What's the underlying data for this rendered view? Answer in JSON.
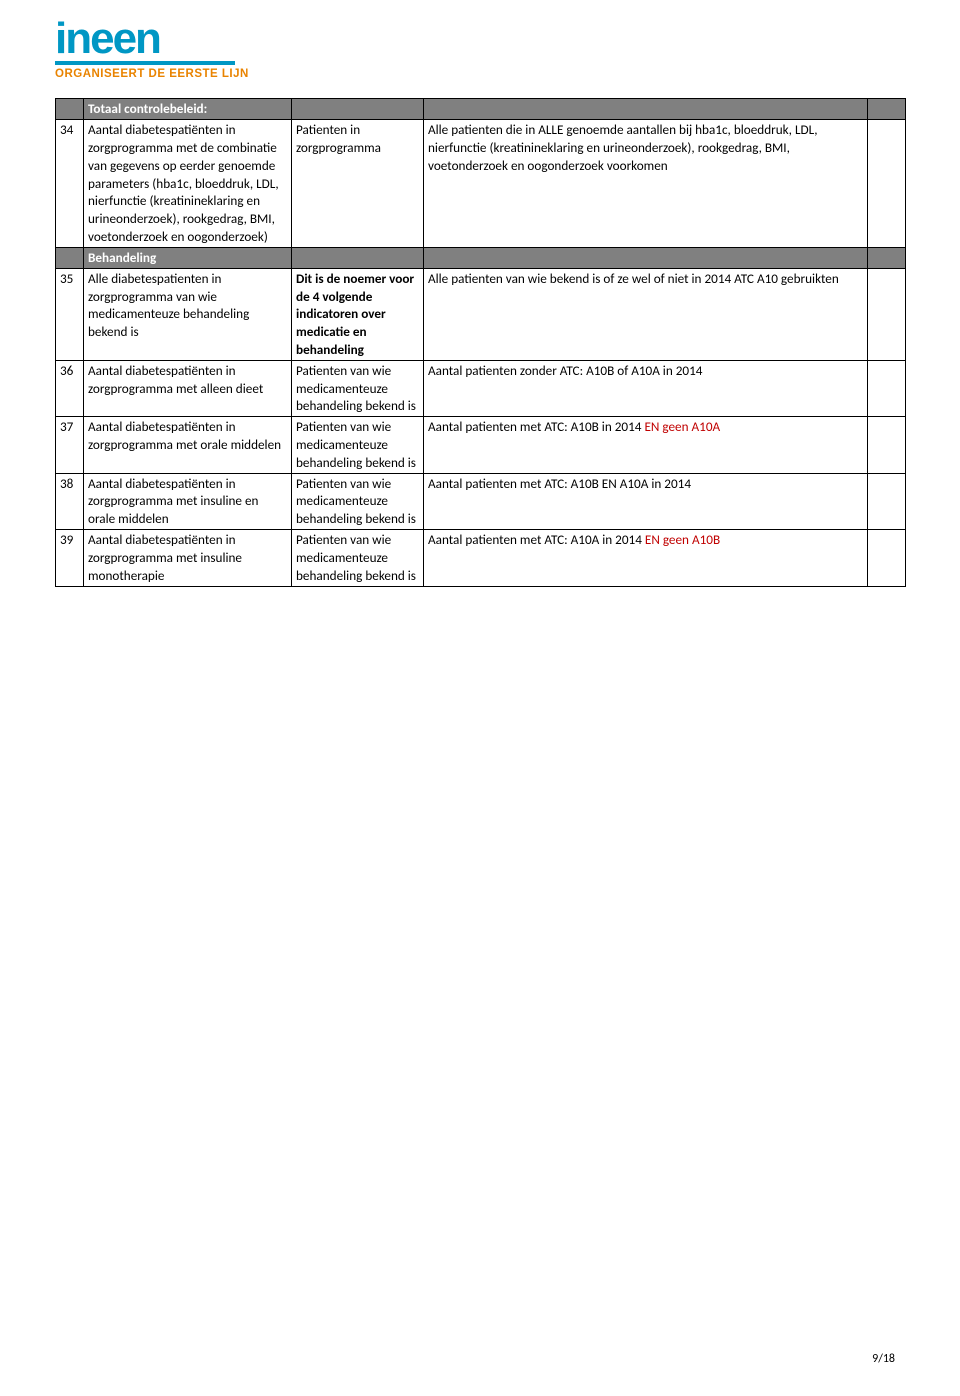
{
  "brand": {
    "name": "ineen",
    "tagline": "ORGANISEERT DE EERSTE LIJN",
    "color_main": "#0097c4",
    "color_line": "#0097c4",
    "color_tagline": "#e98300"
  },
  "colors": {
    "section_bg": "#808080",
    "section_fg": "#ffffff",
    "border": "#000000",
    "accent_red": "#c00000"
  },
  "section_headers": {
    "s1": "Totaal controlebeleid:",
    "s2": "Behandeling"
  },
  "rows": {
    "r34": {
      "num": "34",
      "col1": "Aantal diabetespatiënten in zorgprogramma met de combinatie van gegevens op eerder genoemde parameters (hba1c, bloeddruk, LDL, nierfunctie (kreatinineklaring en urineonderzoek), rookgedrag, BMI, voetonderzoek en oogonderzoek)",
      "col2": "Patienten in zorgprogramma",
      "col3": "Alle patienten die in ALLE genoemde aantallen bij hba1c, bloeddruk, LDL, nierfunctie (kreatinineklaring en urineonderzoek), rookgedrag, BMI, voetonderzoek en oogonderzoek voorkomen"
    },
    "r35": {
      "num": "35",
      "col1": "Alle diabetespatienten in zorgprogramma van wie medicamenteuze behandeling bekend is",
      "col2": "Dit is de noemer voor de 4 volgende indicatoren over medicatie en behandeling",
      "col3": "Alle patienten van wie bekend is of ze wel of niet  in 2014 ATC A10 gebruikten"
    },
    "r36": {
      "num": "36",
      "col1": "Aantal diabetespatiënten in zorgprogramma met alleen dieet",
      "col2": "Patienten van wie medicamenteuze behandeling bekend is",
      "col3": "Aantal patienten zonder ATC: A10B of A10A in 2014"
    },
    "r37": {
      "num": "37",
      "col1": "Aantal diabetespatiënten in zorgprogramma met orale middelen",
      "col2": "Patienten van wie medicamenteuze behandeling bekend is",
      "col3_a": "Aantal patienten met ATC: A10B in 2014 ",
      "col3_b": "EN geen A10A"
    },
    "r38": {
      "num": "38",
      "col1": "Aantal diabetespatiënten in zorgprogramma met insuline en orale middelen",
      "col2": "Patienten van wie medicamenteuze behandeling bekend is",
      "col3": "Aantal patienten met ATC: A10B EN A10A in 2014"
    },
    "r39": {
      "num": "39",
      "col1": "Aantal diabetespatiënten in zorgprogramma met insuline monotherapie",
      "col2": "Patienten van wie medicamenteuze behandeling bekend is",
      "col3_a": "Aantal patienten met ATC: A10A in 2014 ",
      "col3_b": "EN geen A10B"
    }
  },
  "footer": "9/18"
}
